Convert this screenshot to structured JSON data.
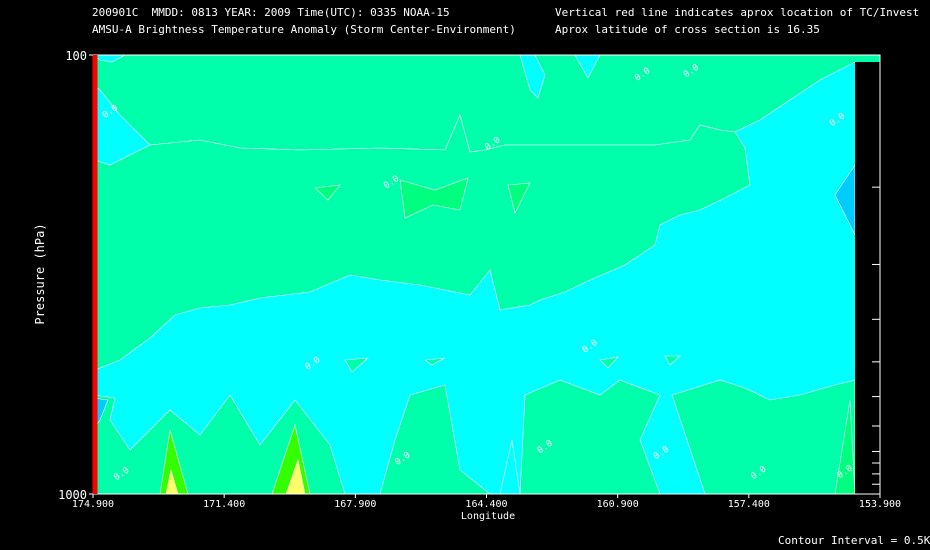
{
  "header": {
    "line1_left": "200901C  MMDD: 0813 YEAR: 2009 Time(UTC): 0335 NOAA-15",
    "line2_left": "AMSU-A Brightness Temperature Anomaly (Storm Center-Environment)",
    "line1_right": "Vertical red line indicates aprox location of TC/Invest",
    "line2_right": "Aprox latitude of cross section is 16.35"
  },
  "footer": {
    "contour_interval": "Contour Interval = 0.5K"
  },
  "colors": {
    "background": "#000000",
    "cyan_zone": "#00FFFF",
    "anomaly_positive": "#00FFAA",
    "anomaly_light_green": "#00FF7F",
    "anomaly_green": "#33FF00",
    "anomaly_yellow": "#FFFF66",
    "anomaly_negative": "#00CCFF",
    "anomaly_negative_deep": "#0099FF",
    "storm_line": "#FF0000",
    "contour_line": "#FFFFFF"
  },
  "chart_data": {
    "type": "contour",
    "xlabel": "Longitude",
    "ylabel": "Pressure (hPa)",
    "xlim": [
      174.9,
      153.9
    ],
    "ylim": [
      1000,
      100
    ],
    "yscale": "log",
    "x_ticks": [
      "174.900",
      "171.400",
      "167.900",
      "164.400",
      "160.900",
      "157.400",
      "153.900"
    ],
    "y_tick_labels": [
      "100",
      "1000"
    ],
    "y_minor_ticks_hPa": [
      200,
      300,
      400,
      500,
      600,
      700,
      800,
      850,
      900,
      950
    ],
    "storm_center_longitude": 174.9,
    "contour_interval_K": 0.5,
    "contour_labels": [
      {
        "lon": 174.4,
        "p": 136,
        "text": "0.0"
      },
      {
        "lon": 169.0,
        "p": 510,
        "text": "0.0"
      },
      {
        "lon": 166.9,
        "p": 197,
        "text": "0.0"
      },
      {
        "lon": 164.2,
        "p": 161,
        "text": "0.0"
      },
      {
        "lon": 161.6,
        "p": 466,
        "text": "0.0"
      },
      {
        "lon": 160.2,
        "p": 112,
        "text": "0.0"
      },
      {
        "lon": 158.9,
        "p": 110,
        "text": "0.0"
      },
      {
        "lon": 155.0,
        "p": 142,
        "text": "0.0"
      },
      {
        "lon": 174.1,
        "p": 910,
        "text": "0.0"
      },
      {
        "lon": 166.6,
        "p": 840,
        "text": "0.0"
      },
      {
        "lon": 162.8,
        "p": 790,
        "text": "0.0"
      },
      {
        "lon": 159.7,
        "p": 815,
        "text": "0.0"
      },
      {
        "lon": 157.1,
        "p": 905,
        "text": "0.0"
      },
      {
        "lon": 154.8,
        "p": 900,
        "text": "0.0"
      }
    ]
  }
}
